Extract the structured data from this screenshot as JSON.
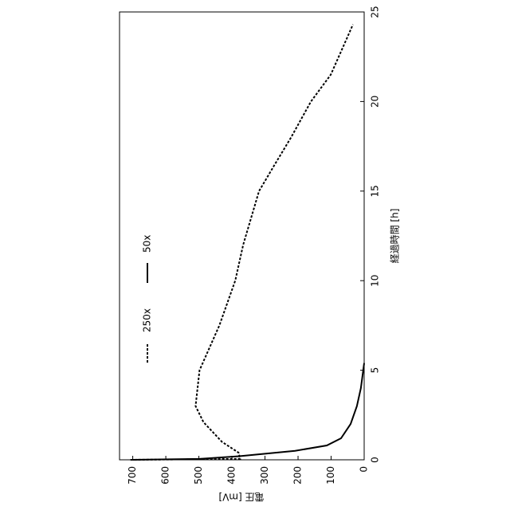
{
  "chart_data": {
    "type": "line",
    "x_label": "経過時間 [h]",
    "y_label": "電圧 [mV]",
    "xlim": [
      0,
      25
    ],
    "xticks": [
      0,
      5,
      10,
      15,
      20,
      25
    ],
    "ylim": [
      0,
      740
    ],
    "yticks": [
      0,
      100,
      200,
      300,
      400,
      500,
      600,
      700
    ],
    "grid": false,
    "legend": "upper-left",
    "series": [
      {
        "name": "250x",
        "color": "#000000",
        "style": "dashed",
        "x": [
          0,
          0.05,
          0.4,
          1,
          2.1,
          3,
          5,
          6,
          7.5,
          10,
          12,
          15,
          16.5,
          18,
          20,
          21.5,
          22.5,
          23.5,
          24.3
        ],
        "values": [
          707,
          375,
          380,
          430,
          486,
          510,
          498,
          474,
          438,
          390,
          366,
          318,
          270,
          221,
          161,
          101,
          77,
          53,
          34
        ]
      },
      {
        "name": "50x",
        "color": "#000000",
        "style": "solid",
        "x": [
          0,
          0.05,
          0.2,
          0.5,
          0.8,
          1.2,
          2,
          3,
          4,
          5.4
        ],
        "values": [
          700,
          498,
          378,
          209,
          113,
          70,
          41,
          22,
          10,
          0
        ]
      }
    ]
  }
}
